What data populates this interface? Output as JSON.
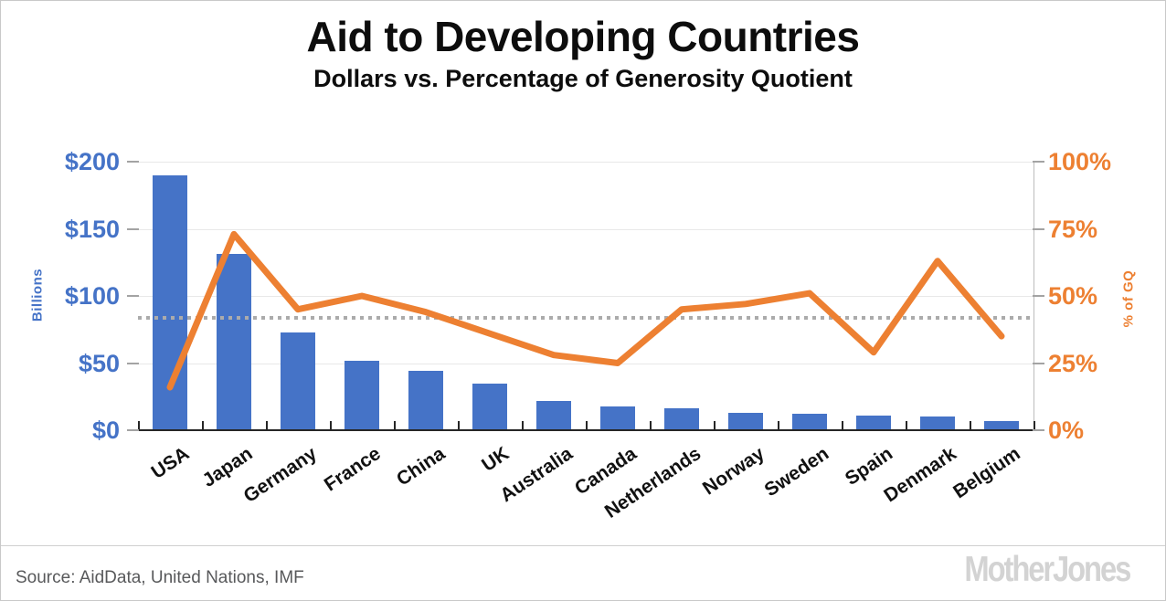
{
  "title": "Aid to Developing Countries",
  "subtitle": "Dollars vs. Percentage of Generosity Quotient",
  "footer": {
    "source": "Source: AidData, United Nations, IMF",
    "logo": "MotherJones"
  },
  "colors": {
    "bar_blue": "#4573c7",
    "line_orange": "#ed8032",
    "dotted_gray": "#ababab",
    "gridline": "#e8e8e8",
    "axis_dark": "#262626",
    "source_text": "#58595b",
    "logo_gray": "#d3d3d3"
  },
  "chart_data": {
    "type": "bar",
    "subtype": "combo bar + line, dual axis",
    "categories": [
      "USA",
      "Japan",
      "Germany",
      "France",
      "China",
      "UK",
      "Australia",
      "Canada",
      "Netherlands",
      "Norway",
      "Sweden",
      "Spain",
      "Denmark",
      "Belgium"
    ],
    "series": [
      {
        "name": "Aid in dollars (billions)",
        "type": "bar",
        "axis": "left",
        "color": "#4573c7",
        "values": [
          190,
          131,
          73,
          52,
          44,
          35,
          22,
          18,
          16,
          13,
          12,
          11,
          10,
          7
        ]
      },
      {
        "name": "% of Generosity Quotient",
        "type": "line",
        "axis": "right",
        "color": "#ed8032",
        "values": [
          16,
          73,
          45,
          50,
          44,
          36,
          28,
          25,
          45,
          47,
          51,
          29,
          63,
          35
        ]
      }
    ],
    "reference_line": {
      "axis": "right",
      "value": 42,
      "style": "dotted",
      "color": "#ababab"
    },
    "left_axis": {
      "title": "Billions",
      "ticks": [
        "$0",
        "$50",
        "$100",
        "$150",
        "$200"
      ],
      "tick_values": [
        0,
        50,
        100,
        150,
        200
      ],
      "min": 0,
      "max": 200,
      "color": "#4573c7"
    },
    "right_axis": {
      "title": "% of GQ",
      "ticks": [
        "0%",
        "25%",
        "50%",
        "75%",
        "100%"
      ],
      "tick_values": [
        0,
        25,
        50,
        75,
        100
      ],
      "min": 0,
      "max": 100,
      "color": "#ed8032"
    },
    "grid": true,
    "legend": "none",
    "title": "Aid to Developing Countries",
    "subtitle": "Dollars vs. Percentage of Generosity Quotient"
  }
}
